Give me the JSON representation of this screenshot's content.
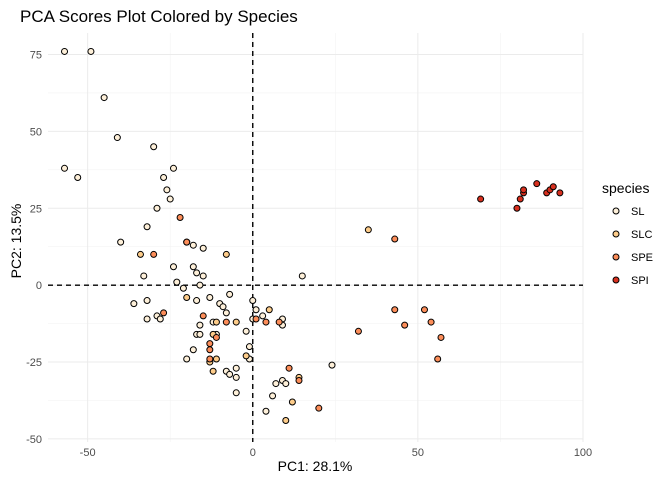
{
  "chart_data": {
    "type": "scatter",
    "title": "PCA Scores Plot Colored by Species",
    "xlabel": "PC1: 28.1%",
    "ylabel": "PC2: 13.5%",
    "xlim": [
      -62,
      100
    ],
    "ylim": [
      -51,
      82
    ],
    "xticks": [
      -50,
      0,
      50,
      100
    ],
    "yticks": [
      -50,
      -25,
      0,
      25,
      50,
      75
    ],
    "grid": true,
    "reference_lines": {
      "x": 0,
      "y": 0,
      "style": "dashed"
    },
    "legend_title": "species",
    "legend_position": "right",
    "series": [
      {
        "name": "SL",
        "color": "#fef0d9",
        "points": [
          [
            -57,
            76
          ],
          [
            -49,
            76
          ],
          [
            -45,
            61
          ],
          [
            -41,
            48
          ],
          [
            -57,
            38
          ],
          [
            -53,
            35
          ],
          [
            -30,
            45
          ],
          [
            -24,
            38
          ],
          [
            -27,
            35
          ],
          [
            -26,
            31
          ],
          [
            -25,
            28
          ],
          [
            -29,
            25
          ],
          [
            -32,
            19
          ],
          [
            -40,
            14
          ],
          [
            -36,
            -6
          ],
          [
            -33,
            3
          ],
          [
            -32,
            -5
          ],
          [
            -32,
            -11
          ],
          [
            -29,
            -10
          ],
          [
            -28,
            -11
          ],
          [
            -24,
            6
          ],
          [
            -23,
            1
          ],
          [
            -21,
            -1
          ],
          [
            -20,
            14
          ],
          [
            -18,
            13
          ],
          [
            -18,
            6
          ],
          [
            -17,
            4
          ],
          [
            -17,
            -5
          ],
          [
            -16,
            0
          ],
          [
            -15,
            3
          ],
          [
            -16,
            -13
          ],
          [
            -17,
            -16
          ],
          [
            -16,
            -16
          ],
          [
            -18,
            -21
          ],
          [
            -20,
            -24
          ],
          [
            -15,
            12
          ],
          [
            -13,
            -4
          ],
          [
            -12,
            -12
          ],
          [
            -11,
            -16
          ],
          [
            -10,
            -6
          ],
          [
            -9,
            -7
          ],
          [
            -8,
            -9
          ],
          [
            -7,
            -3
          ],
          [
            -8,
            -28
          ],
          [
            -7,
            -29
          ],
          [
            -5,
            -27
          ],
          [
            -5,
            -30
          ],
          [
            -5,
            -35
          ],
          [
            -2,
            -15
          ],
          [
            -1,
            -20
          ],
          [
            -1,
            -24
          ],
          [
            0,
            -5
          ],
          [
            1,
            -8
          ],
          [
            0,
            -11
          ],
          [
            3,
            -10
          ],
          [
            9,
            -11
          ],
          [
            9,
            -13
          ],
          [
            6,
            -36
          ],
          [
            4,
            -41
          ],
          [
            7,
            -32
          ],
          [
            9,
            -31
          ],
          [
            10,
            -32
          ],
          [
            15,
            3
          ],
          [
            24,
            -26
          ]
        ]
      },
      {
        "name": "SLC",
        "color": "#fdcc8a",
        "points": [
          [
            -34,
            10
          ],
          [
            -20,
            -4
          ],
          [
            -11,
            -12
          ],
          [
            -12,
            -16
          ],
          [
            -11,
            -24
          ],
          [
            -13,
            -25
          ],
          [
            -12,
            -28
          ],
          [
            -5,
            -12
          ],
          [
            -8,
            10
          ],
          [
            -2,
            -23
          ],
          [
            5,
            -8
          ],
          [
            10,
            -44
          ],
          [
            12,
            -38
          ],
          [
            14,
            -30
          ],
          [
            35,
            18
          ]
        ]
      },
      {
        "name": "SPE",
        "color": "#fc8d59",
        "points": [
          [
            -30,
            10
          ],
          [
            -27,
            -9
          ],
          [
            -22,
            22
          ],
          [
            -20,
            14
          ],
          [
            -15,
            -10
          ],
          [
            -13,
            -19
          ],
          [
            -13,
            -21
          ],
          [
            -13,
            -24
          ],
          [
            -11,
            -17
          ],
          [
            -8,
            -12
          ],
          [
            1,
            -11
          ],
          [
            4,
            -12
          ],
          [
            8,
            -12
          ],
          [
            11,
            -27
          ],
          [
            14,
            -31
          ],
          [
            20,
            -40
          ],
          [
            32,
            -15
          ],
          [
            43,
            -8
          ],
          [
            46,
            -13
          ],
          [
            52,
            -8
          ],
          [
            54,
            -12
          ],
          [
            56,
            -24
          ],
          [
            57,
            -17
          ],
          [
            43,
            15
          ]
        ]
      },
      {
        "name": "SPI",
        "color": "#d7301f",
        "points": [
          [
            69,
            28
          ],
          [
            80,
            25
          ],
          [
            81,
            28
          ],
          [
            82,
            30
          ],
          [
            82,
            31
          ],
          [
            86,
            33
          ],
          [
            89,
            30
          ],
          [
            90,
            31
          ],
          [
            91,
            32
          ],
          [
            93,
            30
          ]
        ]
      }
    ]
  }
}
